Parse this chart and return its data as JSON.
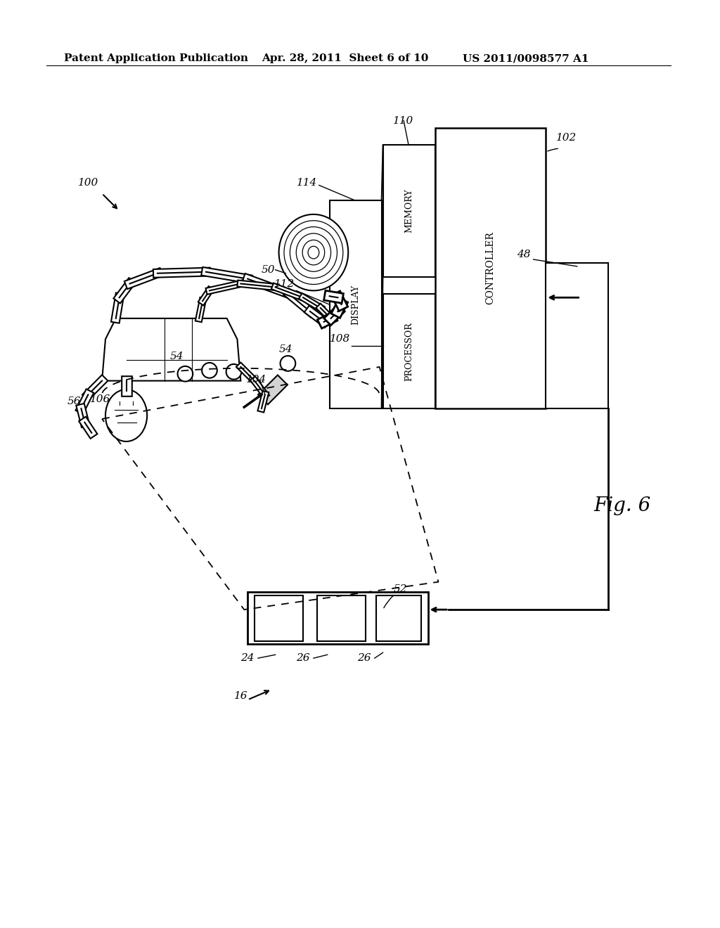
{
  "bg_color": "#ffffff",
  "header_left": "Patent Application Publication",
  "header_mid": "Apr. 28, 2011  Sheet 6 of 10",
  "header_right": "US 2011/0098577 A1",
  "fig_label": "Fig. 6"
}
